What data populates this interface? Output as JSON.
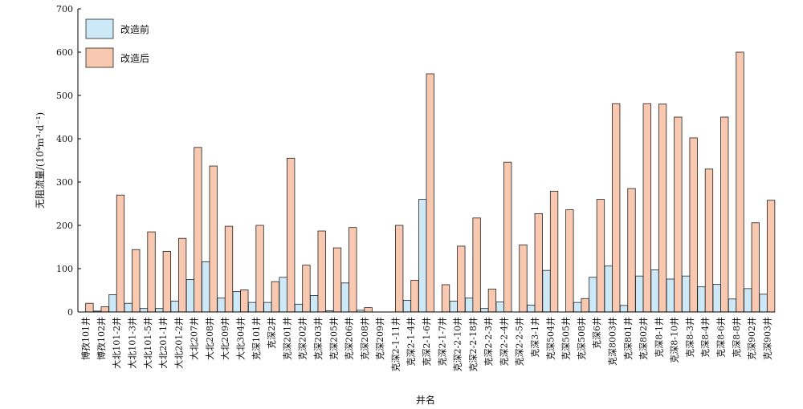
{
  "chart_data": {
    "type": "bar",
    "ylabel": "无阻流量/(10⁴m³·d⁻¹)",
    "xlabel": "井名",
    "ylim": [
      0,
      700
    ],
    "yticks": [
      0,
      100,
      200,
      300,
      400,
      500,
      600,
      700
    ],
    "legend_position": "top-left",
    "categories": [
      "博孜101井",
      "博孜102井",
      "大北101-2井",
      "大北101-3井",
      "大北101-5井",
      "大北201-1井",
      "大北201-2井",
      "大北207井",
      "大北208井",
      "大北209井",
      "大北304井",
      "克深101井",
      "克深2井",
      "克深201井",
      "克深202井",
      "克深203井",
      "克深205井",
      "克深206井",
      "克深208井",
      "克深209井",
      "克深2-1-11井",
      "克深2-1-4井",
      "克深2-1-6井",
      "克深2-1-7井",
      "克深2-2-10井",
      "克深2-2-18井",
      "克深2-2-3井",
      "克深2-2-4井",
      "克深2-2-5井",
      "克深3-1井",
      "克深504井",
      "克深505井",
      "克深508井",
      "克深6井",
      "克深8003井",
      "克深801井",
      "克深802井",
      "克深8-1井",
      "克深8-10井",
      "克深8-3井",
      "克深8-4井",
      "克深8-6井",
      "克深8-8井",
      "克深902井",
      "克深903井"
    ],
    "series": [
      {
        "name": "改造前",
        "color": "#cde9f7",
        "values": [
          0,
          2,
          40,
          20,
          8,
          8,
          25,
          75,
          116,
          32,
          47,
          22,
          22,
          80,
          18,
          38,
          3,
          67,
          4,
          0,
          0,
          27,
          260,
          0,
          25,
          32,
          8,
          23,
          0,
          16,
          96,
          0,
          22,
          80,
          106,
          15,
          83,
          97,
          76,
          83,
          58,
          64,
          30,
          54,
          41
        ]
      },
      {
        "name": "改造后",
        "color": "#f8c8b0",
        "values": [
          20,
          12,
          270,
          144,
          185,
          140,
          170,
          380,
          337,
          198,
          51,
          200,
          70,
          355,
          108,
          187,
          148,
          195,
          10,
          0,
          200,
          73,
          550,
          63,
          152,
          217,
          53,
          346,
          155,
          227,
          279,
          236,
          31,
          260,
          481,
          285,
          481,
          480,
          450,
          402,
          330,
          450,
          600,
          206,
          258
        ]
      }
    ]
  }
}
